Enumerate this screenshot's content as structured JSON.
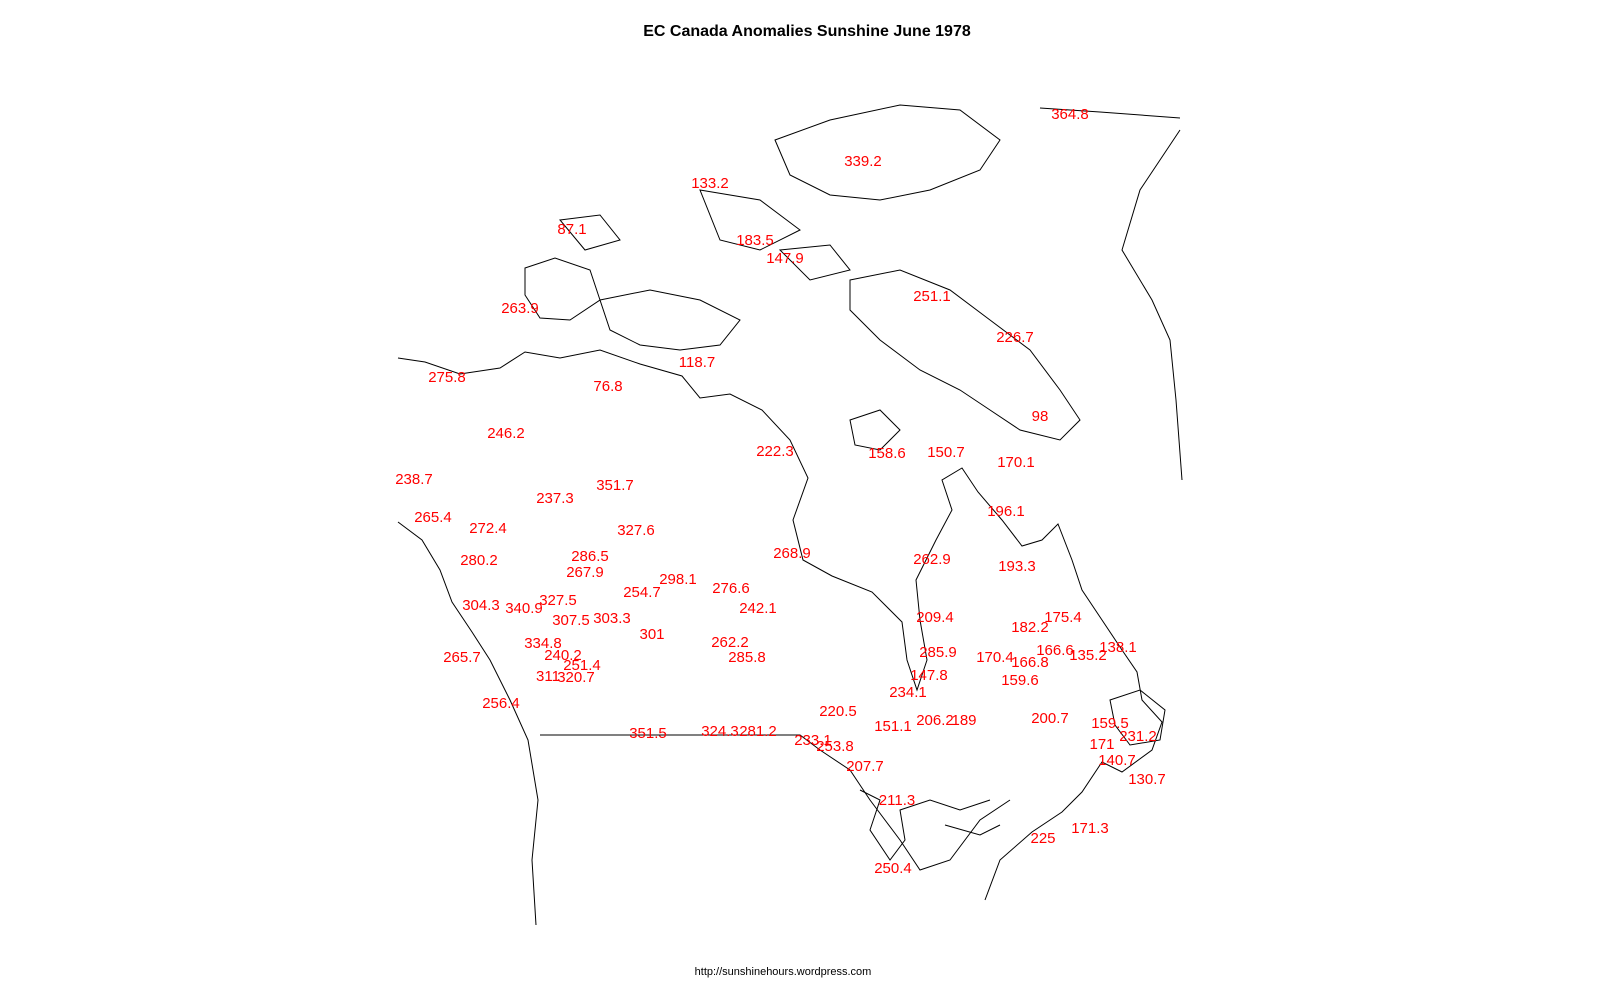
{
  "title": "EC Canada Anomalies Sunshine June 1978",
  "footer": "http://sunshinehours.wordpress.com",
  "labels": [
    364.8,
    339.2,
    133.2,
    87.1,
    183.5,
    147.9,
    263.9,
    251.1,
    226.7,
    275.8,
    118.7,
    76.8,
    98,
    246.2,
    222.3,
    158.6,
    150.7,
    170.1,
    238.7,
    237.3,
    351.7,
    265.4,
    272.4,
    327.6,
    196.1,
    268.9,
    262.9,
    193.3,
    280.2,
    286.5,
    267.9,
    298.1,
    276.6,
    254.7,
    242.1,
    304.3,
    340.9,
    327.5,
    307.5,
    303.3,
    209.4,
    175.4,
    182.2,
    301,
    334.8,
    262.2,
    285.8,
    265.7,
    240.2,
    285.9,
    170.4,
    166.6,
    166.8,
    135.2,
    138.1,
    251.4,
    147.8,
    159.6,
    311,
    320.7,
    234.1,
    256.4,
    220.5,
    351.5,
    324.3,
    281.2,
    233.1,
    253.8,
    151.1,
    206.2,
    189,
    200.7,
    159.5,
    231.2,
    171,
    207.7,
    140.7,
    130.7,
    211.3,
    171.3,
    225,
    250.4
  ]
}
